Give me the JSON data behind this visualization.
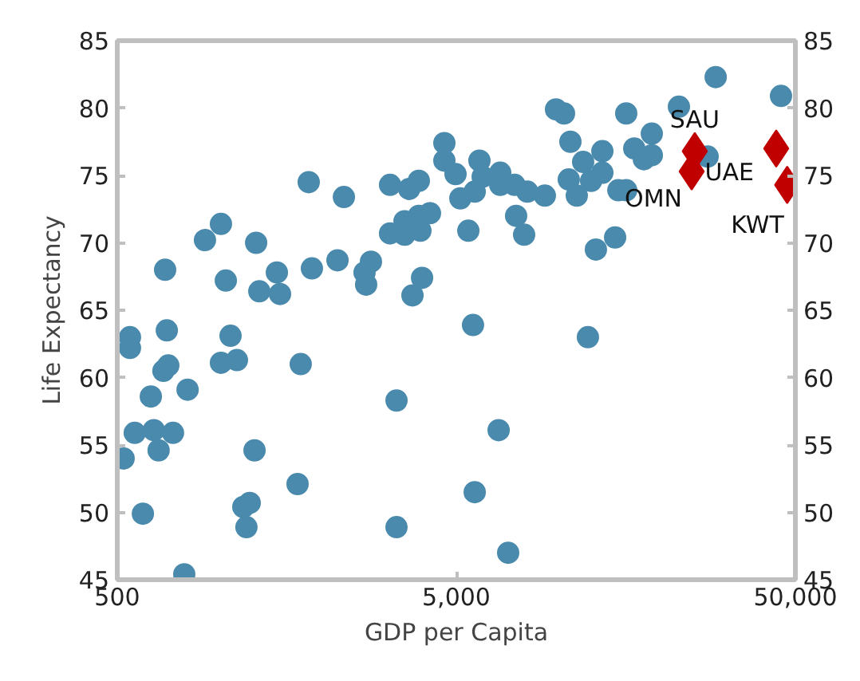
{
  "chart_data": {
    "type": "scatter",
    "xlabel": "GDP per Capita",
    "ylabel": "Life Expectancy",
    "log": "x",
    "xlim": [
      500,
      50000
    ],
    "xticks": [
      500,
      {
        "value": 5000,
        "label": "5,000"
      },
      {
        "value": 50000,
        "label": "50,000"
      }
    ],
    "ylim": [
      45,
      85
    ],
    "yticks": [
      45,
      50,
      55,
      60,
      65,
      70,
      75,
      80,
      85
    ],
    "y2lim": [
      45,
      85
    ],
    "y2ticks": [
      45,
      50,
      55,
      60,
      65,
      70,
      75,
      80,
      85
    ],
    "grid": false,
    "series": [
      {
        "color": "#4a8aad",
        "marker": "circle",
        "x": [
          522,
          545,
          545,
          563,
          595,
          628,
          641,
          662,
          684,
          707,
          700,
          692,
          730,
          788,
          806,
          907,
          1011,
          1045,
          1011,
          1079,
          1127,
          1177,
          1229,
          1202,
          1270,
          1284,
          1312,
          1478,
          1510,
          1701,
          1738,
          1835,
          1875,
          2231,
          2330,
          2681,
          2800,
          2710,
          3188,
          3188,
          3331,
          3331,
          3517,
          3517,
          3630,
          3712,
          3876,
          3876,
          3918,
          3962,
          4181,
          4610,
          4610,
          4973,
          5138,
          5425,
          5665,
          5850,
          5600,
          5665,
          5980,
          6737,
          6737,
          6664,
          7110,
          7425,
          7505,
          7924,
          8098,
          9121,
          9840,
          10390,
          10850,
          10730,
          11830,
          11330,
          12490,
          13480,
          13480,
          15020,
          15850,
          12900,
          14700,
          12220,
          15850,
          16740,
          17870,
          18860,
          18860,
          22670,
          27550,
          29100,
          45350
        ],
        "values": [
          54.0,
          63.0,
          62.2,
          55.9,
          49.9,
          58.6,
          56.1,
          54.6,
          60.5,
          60.9,
          63.5,
          68.0,
          55.9,
          45.4,
          59.1,
          70.2,
          71.4,
          67.2,
          61.1,
          63.1,
          61.3,
          50.4,
          50.7,
          48.9,
          54.6,
          70.0,
          66.4,
          67.8,
          66.2,
          52.1,
          61.0,
          74.5,
          68.1,
          68.7,
          73.4,
          67.8,
          68.6,
          66.9,
          74.3,
          70.7,
          58.3,
          48.9,
          71.6,
          70.6,
          74.0,
          66.1,
          74.6,
          72.0,
          70.9,
          67.4,
          72.2,
          77.4,
          76.1,
          75.1,
          73.3,
          70.9,
          73.8,
          76.1,
          63.9,
          51.5,
          74.9,
          75.2,
          74.3,
          56.1,
          47.0,
          74.3,
          72.0,
          70.6,
          73.8,
          73.5,
          79.9,
          79.6,
          77.5,
          74.7,
          76.0,
          73.5,
          74.6,
          75.2,
          76.8,
          73.9,
          73.9,
          69.5,
          70.4,
          63.0,
          79.6,
          77.0,
          76.2,
          76.5,
          78.1,
          80.1,
          76.4,
          82.3,
          80.9
        ]
      },
      {
        "color": "#c00000",
        "marker": "diamond",
        "x": [
          25250,
          24720,
          43900,
          47300
        ],
        "values": [
          76.8,
          75.3,
          77.0,
          74.3
        ]
      }
    ],
    "annotations": [
      {
        "text": "SAU",
        "x": 25250,
        "y": 76.8
      },
      {
        "text": "OMN",
        "x": 24720,
        "y": 75.3
      },
      {
        "text": "UAE",
        "x": 43900,
        "y": 77.0
      },
      {
        "text": "KWT",
        "x": 47300,
        "y": 74.3
      }
    ]
  }
}
